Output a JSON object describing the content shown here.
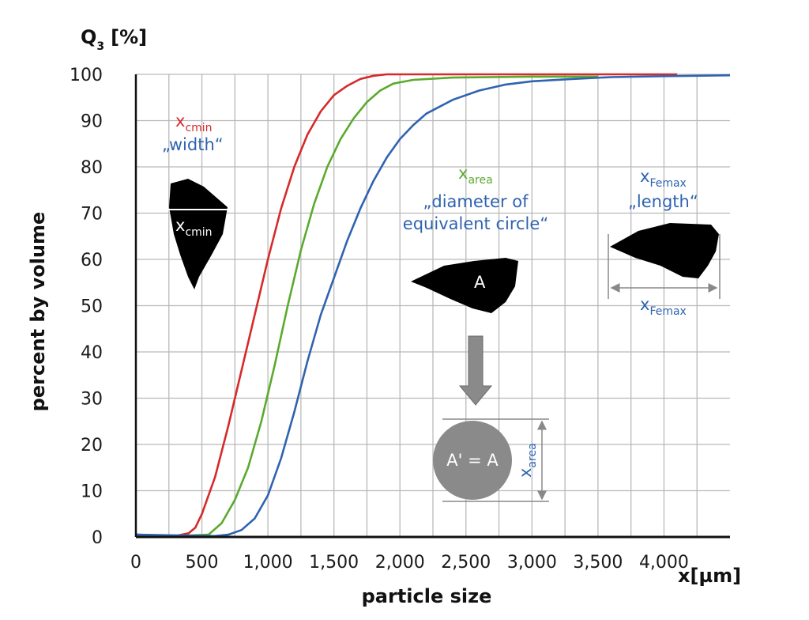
{
  "chart_data": {
    "type": "line",
    "ylabel_main": "Q",
    "ylabel_sub": "3",
    "ylabel_unit": "[%]",
    "ylabel_side": "percent by volume",
    "xlabel": "particle size",
    "xlabel_unit": "x[µm]",
    "xlim": [
      0,
      4500
    ],
    "ylim": [
      0,
      100
    ],
    "grid": true,
    "x_tick_values": [
      0,
      500,
      1000,
      1500,
      2000,
      2500,
      3000,
      3500,
      4000
    ],
    "x_tick_labels": [
      "0",
      "500",
      "1,000",
      "1,500",
      "2,000",
      "2,500",
      "3,000",
      "3,500",
      "4,000"
    ],
    "y_ticks": [
      0,
      10,
      20,
      30,
      40,
      50,
      60,
      70,
      80,
      90,
      100
    ],
    "series": [
      {
        "color": "#d62a2a",
        "points": [
          [
            0,
            0.5
          ],
          [
            300,
            0.2
          ],
          [
            400,
            0.8
          ],
          [
            450,
            2
          ],
          [
            500,
            5
          ],
          [
            600,
            13
          ],
          [
            700,
            24
          ],
          [
            800,
            36
          ],
          [
            900,
            48
          ],
          [
            1000,
            60
          ],
          [
            1100,
            71
          ],
          [
            1200,
            80
          ],
          [
            1300,
            87
          ],
          [
            1400,
            92
          ],
          [
            1500,
            95.5
          ],
          [
            1600,
            97.5
          ],
          [
            1700,
            99
          ],
          [
            1800,
            99.7
          ],
          [
            1900,
            100
          ],
          [
            4100,
            100
          ]
        ]
      },
      {
        "color": "#5aaa2e",
        "points": [
          [
            0,
            0.5
          ],
          [
            300,
            0.2
          ],
          [
            550,
            0.5
          ],
          [
            650,
            3
          ],
          [
            750,
            8
          ],
          [
            850,
            15
          ],
          [
            950,
            25
          ],
          [
            1050,
            37
          ],
          [
            1150,
            50
          ],
          [
            1250,
            62
          ],
          [
            1350,
            72
          ],
          [
            1450,
            80
          ],
          [
            1550,
            86
          ],
          [
            1650,
            90.5
          ],
          [
            1750,
            94
          ],
          [
            1850,
            96.5
          ],
          [
            1950,
            98
          ],
          [
            2100,
            98.8
          ],
          [
            2400,
            99.3
          ],
          [
            3000,
            99.5
          ],
          [
            3500,
            99.5
          ]
        ]
      },
      {
        "color": "#2f63b0",
        "points": [
          [
            0,
            0.5
          ],
          [
            600,
            0.2
          ],
          [
            700,
            0.5
          ],
          [
            800,
            1.5
          ],
          [
            900,
            4
          ],
          [
            1000,
            9
          ],
          [
            1100,
            17
          ],
          [
            1200,
            27
          ],
          [
            1300,
            38
          ],
          [
            1400,
            48
          ],
          [
            1500,
            56
          ],
          [
            1600,
            64
          ],
          [
            1700,
            71
          ],
          [
            1800,
            77
          ],
          [
            1900,
            82
          ],
          [
            2000,
            86
          ],
          [
            2100,
            89
          ],
          [
            2200,
            91.5
          ],
          [
            2400,
            94.5
          ],
          [
            2600,
            96.5
          ],
          [
            2800,
            97.8
          ],
          [
            3000,
            98.5
          ],
          [
            3300,
            99
          ],
          [
            3600,
            99.4
          ],
          [
            4000,
            99.6
          ],
          [
            4500,
            99.8
          ]
        ]
      }
    ]
  },
  "annotations": {
    "xcmin_top": {
      "main": "x",
      "sub": "cmin",
      "color": "#d62a2a"
    },
    "width_label": "„width“",
    "xcmin_shape": {
      "main": "x",
      "sub": "cmin"
    },
    "xarea_top": {
      "main": "x",
      "sub": "area",
      "color": "#5aaa2e"
    },
    "diameter_line1": "„diameter of",
    "diameter_line2": "equivalent circle“",
    "shape_a": "A",
    "circle_label": "A' = A",
    "xarea_side": {
      "main": "x",
      "sub": "area"
    },
    "xfemax_top": {
      "main": "x",
      "sub": "Femax"
    },
    "length_label": "„length“",
    "xfemax_bottom": {
      "main": "x",
      "sub": "Femax"
    },
    "blue": "#2f63b0"
  }
}
